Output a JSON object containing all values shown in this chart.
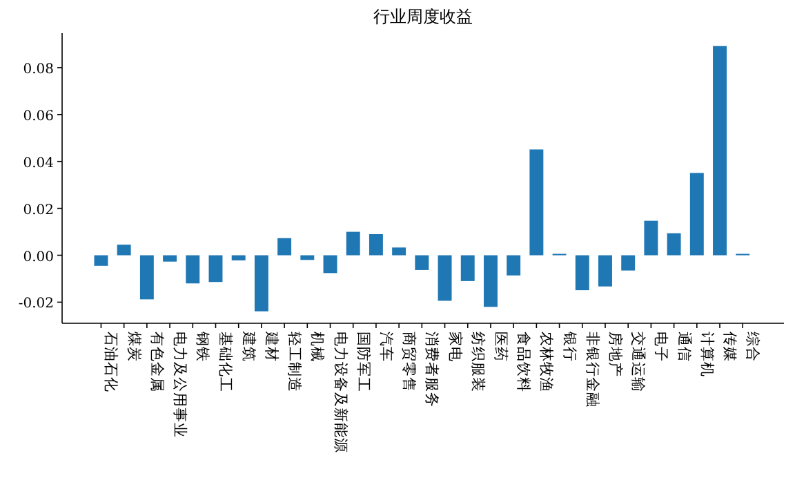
{
  "chart_data": {
    "type": "bar",
    "title": "行业周度收益",
    "categories": [
      "石油石化",
      "煤炭",
      "有色金属",
      "电力及公用事业",
      "钢铁",
      "基础化工",
      "建筑",
      "建材",
      "轻工制造",
      "机械",
      "电力设备及新能源",
      "国防军工",
      "汽车",
      "商贸零售",
      "消费者服务",
      "家电",
      "纺织服装",
      "医药",
      "食品饮料",
      "农林牧渔",
      "银行",
      "非银行金融",
      "房地产",
      "交通运输",
      "电子",
      "通信",
      "计算机",
      "传媒",
      "综合"
    ],
    "values": [
      -0.0045,
      0.0045,
      -0.0188,
      -0.0027,
      -0.012,
      -0.0114,
      -0.0022,
      -0.0239,
      0.0073,
      -0.002,
      -0.0076,
      0.01,
      0.009,
      0.0033,
      -0.0063,
      -0.0194,
      -0.011,
      -0.022,
      -0.0086,
      0.0451,
      0.0006,
      -0.0149,
      -0.0133,
      -0.0065,
      0.0147,
      0.0094,
      0.0351,
      0.0892,
      0.0006
    ],
    "color": "#1f77b4",
    "ylim": [
      -0.029,
      0.0947
    ],
    "yticks": [
      {
        "value": -0.02,
        "label": "-0.02"
      },
      {
        "value": 0,
        "label": "0.00"
      },
      {
        "value": 0.02,
        "label": "0.02"
      },
      {
        "value": 0.04,
        "label": "0.04"
      },
      {
        "value": 0.06,
        "label": "0.06"
      },
      {
        "value": 0.08,
        "label": "0.08"
      }
    ]
  }
}
